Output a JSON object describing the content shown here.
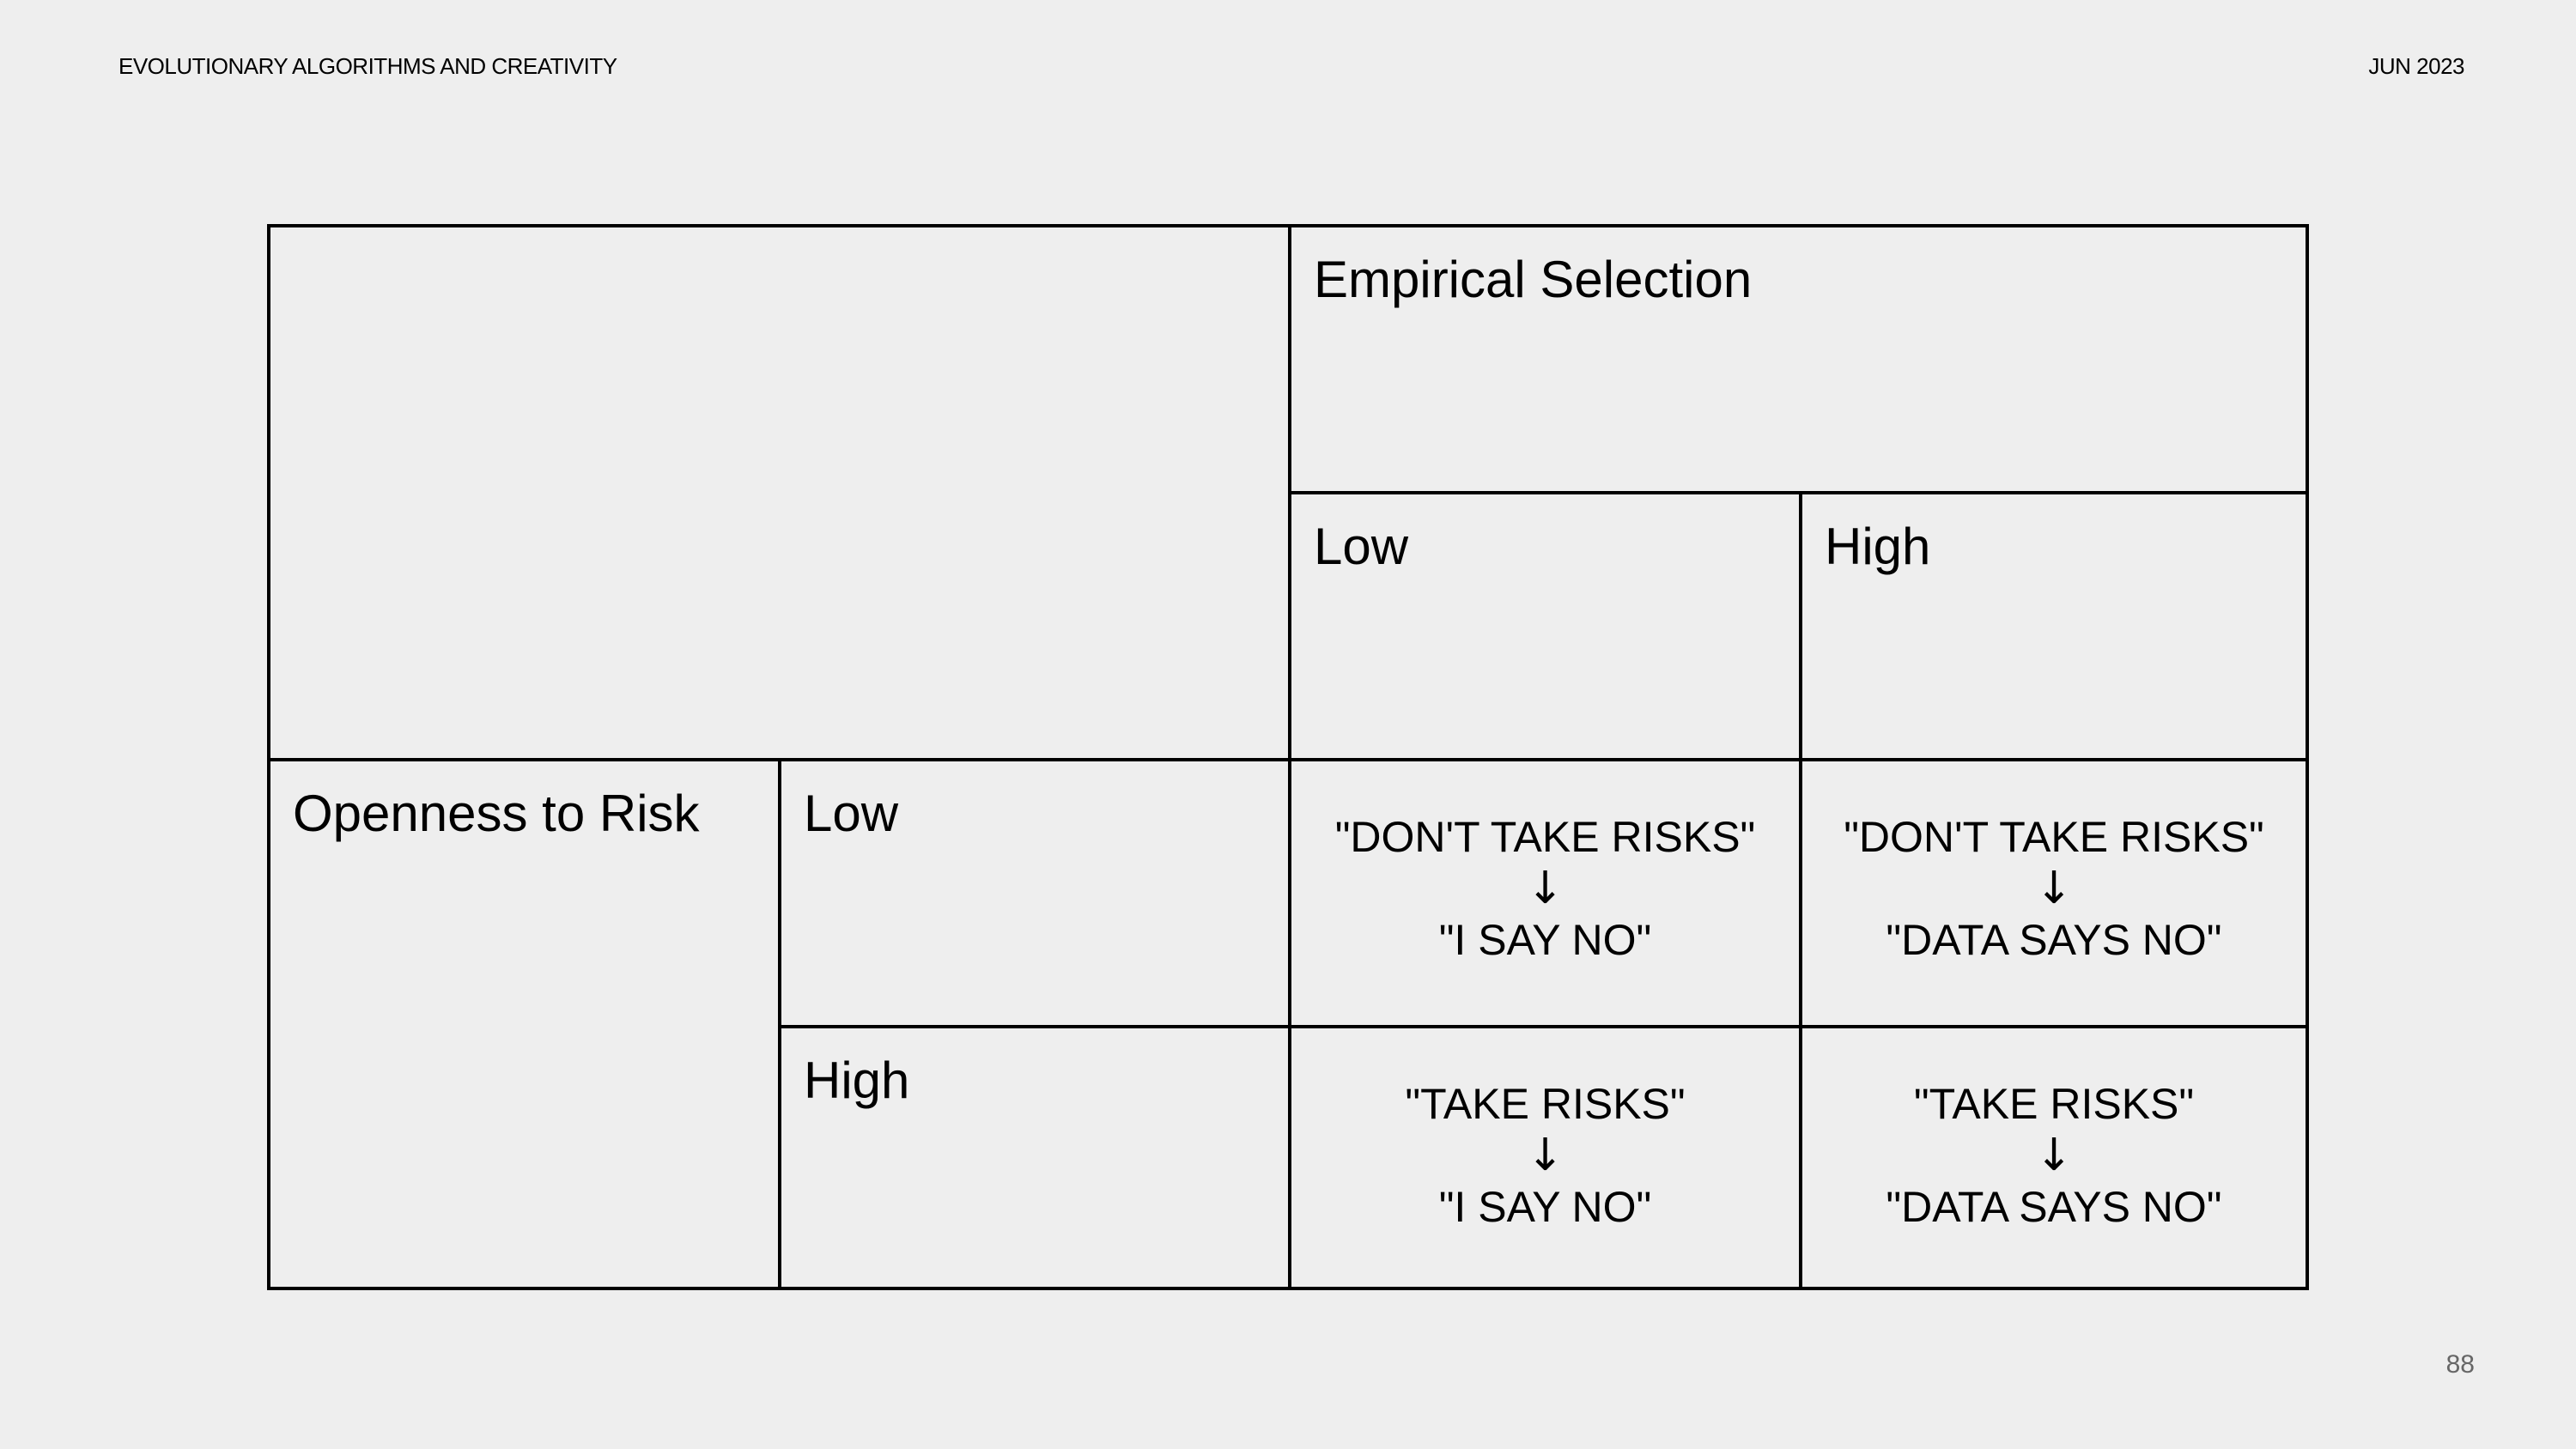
{
  "header": {
    "left": "EVOLUTIONARY ALGORITHMS AND CREATIVITY",
    "right": "JUN 2023"
  },
  "page_number": "88",
  "table": {
    "column_axis_label": "Empirical Selection",
    "column_levels": [
      "Low",
      "High"
    ],
    "row_axis_label": "Openness to Risk",
    "row_levels": [
      "Low",
      "High"
    ],
    "arrow": "↓",
    "cells": [
      [
        {
          "top": "\"DON'T TAKE RISKS\"",
          "bottom": "\"I SAY NO\""
        },
        {
          "top": "\"DON'T TAKE RISKS\"",
          "bottom": "\"DATA SAYS NO\""
        }
      ],
      [
        {
          "top": "\"TAKE RISKS\"",
          "bottom": "\"I SAY NO\""
        },
        {
          "top": "\"TAKE RISKS\"",
          "bottom": "\"DATA SAYS NO\""
        }
      ]
    ]
  }
}
